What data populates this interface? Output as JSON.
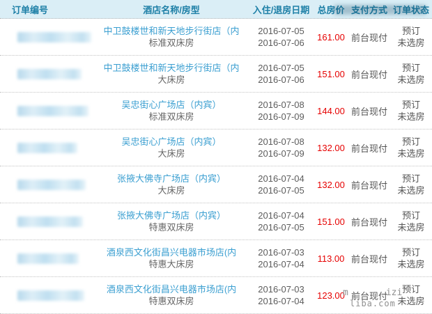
{
  "colors": {
    "header_bg": "#daeef6",
    "header_text": "#1d7fa6",
    "hotel_link_blue": "#3b9fd1",
    "body_gray": "#5c5c5c",
    "price_red": "#e60000",
    "watermark_gray": "#8f8f8f"
  },
  "header": {
    "columns": [
      "订单编号",
      "酒店名称/房型",
      "入住/退房日期",
      "总房价",
      "支付方式",
      "订单状态"
    ]
  },
  "rows": [
    {
      "order_masked": "true",
      "hotel": "中卫鼓楼世和新天地步行街店（内",
      "room": "标准双床房",
      "checkin": "2016-07-05",
      "checkout": "2016-07-06",
      "price": "161.00",
      "payment": "前台现付",
      "status1": "预订",
      "status2": "未选房"
    },
    {
      "order_masked": "true",
      "hotel": "中卫鼓楼世和新天地步行街店（内",
      "room": "大床房",
      "checkin": "2016-07-05",
      "checkout": "2016-07-06",
      "price": "151.00",
      "payment": "前台现付",
      "status1": "预订",
      "status2": "未选房"
    },
    {
      "order_masked": "true",
      "hotel": "吴忠街心广场店（内宾）",
      "room": "标准双床房",
      "checkin": "2016-07-08",
      "checkout": "2016-07-09",
      "price": "144.00",
      "payment": "前台现付",
      "status1": "预订",
      "status2": "未选房"
    },
    {
      "order_masked": "true",
      "hotel": "吴忠街心广场店（内宾）",
      "room": "大床房",
      "checkin": "2016-07-08",
      "checkout": "2016-07-09",
      "price": "132.00",
      "payment": "前台现付",
      "status1": "预订",
      "status2": "未选房"
    },
    {
      "order_masked": "true",
      "hotel": "张掖大佛寺广场店（内宾）",
      "room": "大床房",
      "checkin": "2016-07-04",
      "checkout": "2016-07-05",
      "price": "132.00",
      "payment": "前台现付",
      "status1": "预订",
      "status2": "未选房"
    },
    {
      "order_masked": "true",
      "hotel": "张掖大佛寺广场店（内宾）",
      "room": "特惠双床房",
      "checkin": "2016-07-04",
      "checkout": "2016-07-05",
      "price": "151.00",
      "payment": "前台现付",
      "status1": "预订",
      "status2": "未选房"
    },
    {
      "order_masked": "true",
      "hotel": "酒泉西文化街昌兴电器市场店(内",
      "room": "特惠大床房",
      "checkin": "2016-07-03",
      "checkout": "2016-07-04",
      "price": "113.00",
      "payment": "前台现付",
      "status1": "预订",
      "status2": "未选房"
    },
    {
      "order_masked": "true",
      "hotel": "酒泉西文化街昌兴电器市场店(内",
      "room": "特惠双床房",
      "checkin": "2016-07-03",
      "checkout": "2016-07-04",
      "price": "123.00",
      "payment": "前台现付",
      "status1": "预订",
      "status2": "未选房"
    }
  ],
  "watermark": {
    "fragment_left": "m",
    "fragment_right": "izi",
    "domain": "liba.com"
  }
}
